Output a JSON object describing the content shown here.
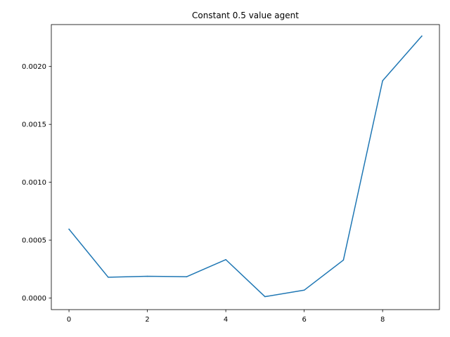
{
  "chart_data": {
    "type": "line",
    "title": "Constant 0.5 value agent",
    "xlabel": "",
    "ylabel": "",
    "x": [
      0,
      1,
      2,
      3,
      4,
      5,
      6,
      7,
      8,
      9
    ],
    "series": [
      {
        "color": "#1f77b4",
        "values": [
          0.000595,
          0.00018,
          0.000188,
          0.000184,
          0.000332,
          1.2e-05,
          6.8e-05,
          0.000328,
          0.001877,
          0.002263
        ]
      }
    ],
    "xlim": [
      -0.45,
      9.45
    ],
    "ylim": [
      -0.0001,
      0.002362
    ],
    "xticks": [
      0,
      2,
      4,
      6,
      8
    ],
    "xtick_labels": [
      "0",
      "2",
      "4",
      "6",
      "8"
    ],
    "yticks": [
      0,
      0.0005,
      0.001,
      0.0015,
      0.002
    ],
    "ytick_labels": [
      "0.0000",
      "0.0005",
      "0.0010",
      "0.0015",
      "0.0020"
    ],
    "grid": false,
    "legend": "none"
  }
}
